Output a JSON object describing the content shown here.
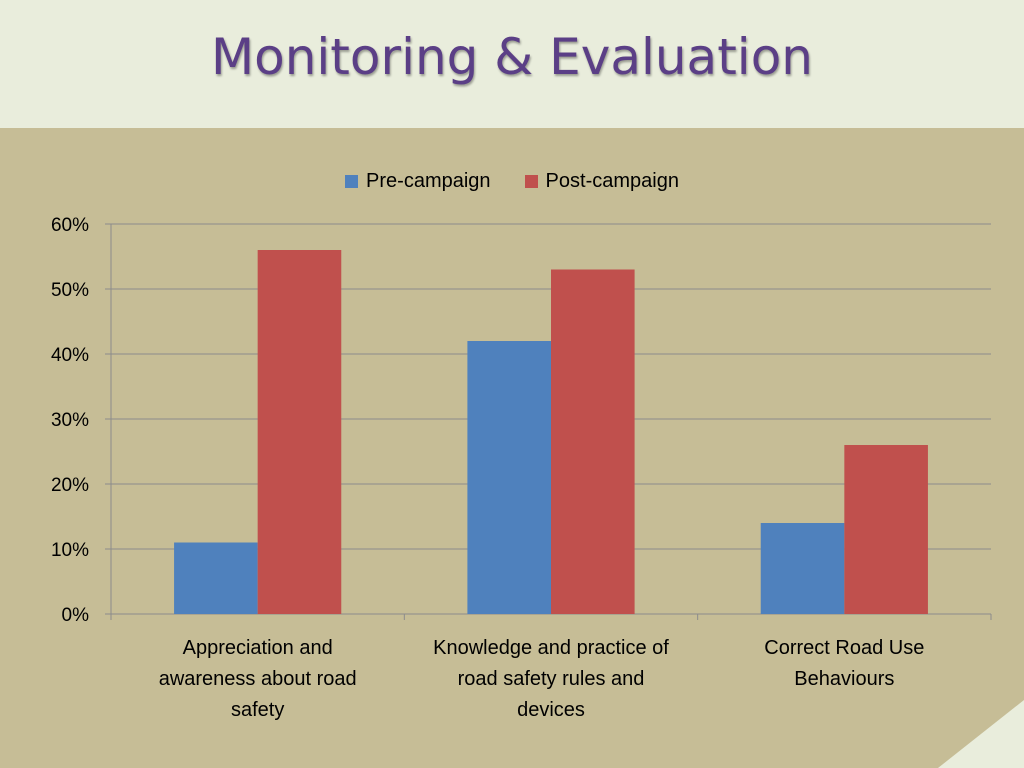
{
  "slide": {
    "title": "Monitoring & Evaluation"
  },
  "colors": {
    "pre": "#4f81bd",
    "post": "#c0504d",
    "grid": "#8c8c8c",
    "axis": "#8c8c8c"
  },
  "chart_data": {
    "type": "bar",
    "title": "",
    "xlabel": "",
    "ylabel": "",
    "ylim": [
      0,
      60
    ],
    "yticks": [
      0,
      10,
      20,
      30,
      40,
      50,
      60
    ],
    "ytick_labels": [
      "0%",
      "10%",
      "20%",
      "30%",
      "40%",
      "50%",
      "60%"
    ],
    "grid": true,
    "legend_position": "top-center",
    "categories": [
      [
        "Appreciation  and",
        "awareness about road",
        "safety"
      ],
      [
        "Knowledge  and practice of",
        "road safety rules and",
        "devices"
      ],
      [
        "Correct Road Use",
        "Behaviours"
      ]
    ],
    "series": [
      {
        "name": "Pre-campaign",
        "values": [
          11,
          42,
          14
        ]
      },
      {
        "name": "Post-campaign",
        "values": [
          56,
          53,
          26
        ]
      }
    ]
  }
}
